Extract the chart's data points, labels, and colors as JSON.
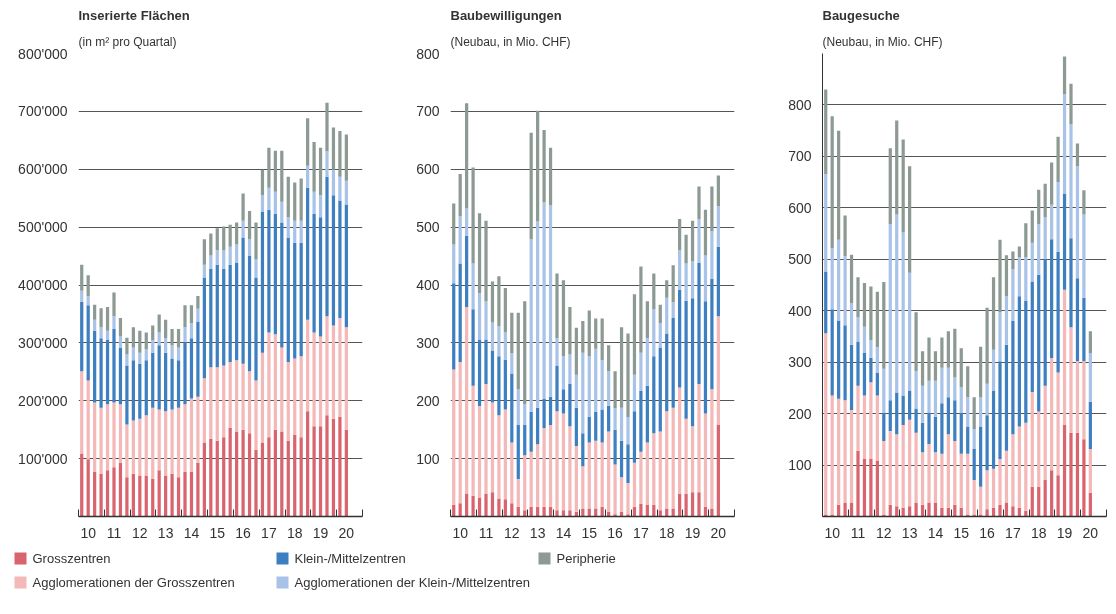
{
  "chart_data": [
    {
      "type": "bar",
      "stacked": true,
      "title": "Inserierte Flächen",
      "subtitle": "(in m² pro Quartal)",
      "grid": "y",
      "legend": "bottom",
      "categories": [
        null,
        "10",
        null,
        null,
        null,
        "11",
        null,
        null,
        null,
        "12",
        null,
        null,
        null,
        "13",
        null,
        null,
        null,
        "14",
        null,
        null,
        null,
        "15",
        null,
        null,
        null,
        "16",
        null,
        null,
        null,
        "17",
        null,
        null,
        null,
        "18",
        null,
        null,
        null,
        "19",
        null,
        null,
        null,
        "20"
      ],
      "ylim": [
        0,
        800000
      ],
      "yticks": [
        {
          "value": 0,
          "label": null
        },
        {
          "value": 100000,
          "label": "100'000"
        },
        {
          "value": 200000,
          "label": "200'000"
        },
        {
          "value": 300000,
          "label": "300'000"
        },
        {
          "value": 400000,
          "label": "400'000"
        },
        {
          "value": 500000,
          "label": "500'000"
        },
        {
          "value": 600000,
          "label": "600'000"
        },
        {
          "value": 700000,
          "label": "700'000"
        },
        {
          "value": 800000,
          "label": "800'000"
        }
      ],
      "series": [
        {
          "name": "Grosszentren",
          "color": "#d9646e",
          "values": [
            109000,
            99000,
            77000,
            74000,
            80000,
            85000,
            93000,
            68000,
            74000,
            71000,
            71000,
            65000,
            80000,
            71000,
            74000,
            68000,
            77000,
            77000,
            93000,
            128000,
            134000,
            131000,
            137000,
            153000,
            147000,
            150000,
            144000,
            115000,
            128000,
            137000,
            150000,
            147000,
            131000,
            141000,
            137000,
            182000,
            156000,
            156000,
            175000,
            169000,
            172000,
            150000
          ]
        },
        {
          "name": "Agglomerationen der Grosszentren",
          "color": "#f4b8b8",
          "values": [
            142000,
            136000,
            120000,
            114000,
            114000,
            112000,
            101000,
            91000,
            92000,
            98000,
            104000,
            123000,
            105000,
            111000,
            111000,
            120000,
            117000,
            127000,
            114000,
            111000,
            124000,
            127000,
            124000,
            114000,
            123000,
            114000,
            107000,
            120000,
            155000,
            181000,
            165000,
            145000,
            136000,
            132000,
            140000,
            158000,
            162000,
            155000,
            171000,
            161000,
            171000,
            177000
          ]
        },
        {
          "name": "Klein-/Mittelzentren",
          "color": "#3d7fc1",
          "values": [
            120000,
            130000,
            124000,
            120000,
            111000,
            127000,
            98000,
            102000,
            104000,
            95000,
            95000,
            95000,
            111000,
            101000,
            88000,
            82000,
            108000,
            104000,
            130000,
            174000,
            170000,
            177000,
            167000,
            168000,
            168000,
            218000,
            200000,
            178000,
            244000,
            212000,
            208000,
            216000,
            215000,
            200000,
            196000,
            228000,
            205000,
            206000,
            241000,
            225000,
            203000,
            212000
          ]
        },
        {
          "name": "Agglomerationen der Klein-/Mittelzentren",
          "color": "#a9c3e8",
          "values": [
            19000,
            16000,
            19000,
            19000,
            16000,
            22000,
            19000,
            19000,
            22000,
            19000,
            19000,
            22000,
            22000,
            25000,
            23000,
            22000,
            25000,
            26000,
            22000,
            22000,
            23000,
            25000,
            32000,
            31000,
            32000,
            29000,
            28000,
            31000,
            28000,
            38000,
            38000,
            36000,
            35000,
            38000,
            38000,
            38000,
            38000,
            38000,
            44000,
            44000,
            41000,
            41000
          ]
        },
        {
          "name": "Peripherie",
          "color": "#8c9a93",
          "values": [
            45000,
            36000,
            26000,
            33000,
            41000,
            41000,
            32000,
            29000,
            35000,
            38000,
            29000,
            25000,
            31000,
            32000,
            28000,
            32000,
            38000,
            31000,
            22000,
            44000,
            38000,
            38000,
            41000,
            38000,
            38000,
            47000,
            49000,
            64000,
            44000,
            69000,
            71000,
            88000,
            70000,
            66000,
            73000,
            82000,
            86000,
            82000,
            84000,
            73000,
            79000,
            80000
          ]
        }
      ]
    },
    {
      "type": "bar",
      "stacked": true,
      "title": "Baubewilligungen",
      "subtitle": "(Neubau, in Mio. CHF)",
      "grid": "y",
      "categories": [
        null,
        "10",
        null,
        null,
        null,
        "11",
        null,
        null,
        null,
        "12",
        null,
        null,
        null,
        "13",
        null,
        null,
        null,
        "14",
        null,
        null,
        null,
        "15",
        null,
        null,
        null,
        "16",
        null,
        null,
        null,
        "17",
        null,
        null,
        null,
        "18",
        null,
        null,
        null,
        "19",
        null,
        null,
        null,
        "20"
      ],
      "ylim": [
        0,
        800
      ],
      "yticks": [
        {
          "value": 0,
          "label": null
        },
        100,
        200,
        300,
        400,
        500,
        600,
        700,
        800
      ],
      "series": [
        {
          "color": "#d9646e",
          "values": [
            20,
            23,
            39,
            36,
            33,
            39,
            42,
            31,
            30,
            23,
            17,
            11,
            17,
            17,
            17,
            17,
            11,
            11,
            11,
            8,
            14,
            14,
            14,
            17,
            8,
            4,
            8,
            4,
            17,
            22,
            20,
            20,
            11,
            14,
            14,
            39,
            39,
            42,
            42,
            17,
            14,
            159
          ]
        },
        {
          "color": "#f4b8b8",
          "values": [
            234,
            244,
            323,
            190,
            158,
            190,
            155,
            144,
            155,
            105,
            48,
            95,
            95,
            108,
            136,
            141,
            171,
            167,
            145,
            114,
            73,
            114,
            117,
            111,
            139,
            86,
            60,
            54,
            76,
            90,
            108,
            124,
            136,
            168,
            174,
            184,
            130,
            114,
            187,
            161,
            206,
            187
          ]
        },
        {
          "color": "#3d7fc1",
          "values": [
            149,
            170,
            123,
            132,
            115,
            77,
            90,
            102,
            86,
            119,
            93,
            52,
            69,
            63,
            50,
            49,
            79,
            42,
            73,
            66,
            57,
            44,
            50,
            57,
            44,
            60,
            63,
            67,
            89,
            105,
            98,
            133,
            145,
            134,
            155,
            169,
            204,
            221,
            209,
            194,
            191,
            120
          ]
        },
        {
          "color": "#a9c3e8",
          "values": [
            67,
            82,
            47,
            79,
            80,
            66,
            48,
            52,
            48,
            35,
            62,
            36,
            298,
            322,
            340,
            331,
            47,
            57,
            51,
            57,
            139,
            105,
            109,
            85,
            60,
            37,
            57,
            47,
            63,
            66,
            82,
            81,
            42,
            62,
            27,
            68,
            64,
            64,
            76,
            79,
            82,
            70
          ]
        },
        {
          "color": "#8c9a93",
          "values": [
            71,
            73,
            182,
            166,
            138,
            139,
            71,
            86,
            76,
            70,
            132,
            178,
            184,
            191,
            125,
            99,
            112,
            131,
            82,
            81,
            55,
            79,
            52,
            72,
            45,
            64,
            139,
            144,
            139,
            149,
            64,
            62,
            32,
            30,
            64,
            54,
            50,
            70,
            56,
            79,
            77,
            53
          ]
        }
      ]
    },
    {
      "type": "bar",
      "stacked": true,
      "title": "Baugesuche",
      "subtitle": "(Neubau, in Mio. CHF)",
      "grid": "y",
      "categories": [
        null,
        "10",
        null,
        null,
        null,
        "11",
        null,
        null,
        null,
        "12",
        null,
        null,
        null,
        "13",
        null,
        null,
        null,
        "14",
        null,
        null,
        null,
        "15",
        null,
        null,
        null,
        "16",
        null,
        null,
        null,
        "17",
        null,
        null,
        null,
        "18",
        null,
        null,
        null,
        "19",
        null,
        null,
        null,
        "20"
      ],
      "ylim": [
        0,
        900
      ],
      "yticks": [
        {
          "value": 0,
          "label": null
        },
        100,
        200,
        300,
        400,
        500,
        600,
        700,
        800
      ],
      "series": [
        {
          "color": "#d9646e",
          "values": [
            4,
            4,
            23,
            27,
            27,
            128,
            112,
            112,
            109,
            4,
            23,
            20,
            17,
            20,
            27,
            23,
            27,
            27,
            17,
            17,
            23,
            17,
            4,
            4,
            4,
            14,
            17,
            23,
            27,
            20,
            17,
            11,
            58,
            58,
            71,
            90,
            80,
            178,
            163,
            163,
            150,
            46
          ]
        },
        {
          "color": "#f4b8b8",
          "values": [
            352,
            231,
            206,
            199,
            180,
            126,
            123,
            149,
            126,
            143,
            143,
            140,
            161,
            168,
            136,
            102,
            114,
            98,
            105,
            143,
            124,
            105,
            118,
            67,
            54,
            76,
            76,
            89,
            101,
            140,
            158,
            171,
            184,
            146,
            183,
            218,
            200,
            263,
            205,
            139,
            152,
            85
          ]
        },
        {
          "color": "#3d7fc1",
          "values": [
            120,
            168,
            152,
            146,
            127,
            86,
            83,
            47,
            44,
            54,
            60,
            81,
            57,
            57,
            47,
            57,
            60,
            69,
            98,
            72,
            79,
            79,
            53,
            60,
            117,
            107,
            152,
            190,
            206,
            220,
            253,
            237,
            215,
            266,
            247,
            231,
            234,
            187,
            173,
            161,
            123,
            92
          ]
        },
        {
          "color": "#a9c3e8",
          "values": [
            190,
            119,
            157,
            134,
            81,
            48,
            51,
            35,
            50,
            86,
            342,
            346,
            317,
            229,
            73,
            72,
            63,
            70,
            69,
            57,
            44,
            50,
            57,
            39,
            57,
            61,
            79,
            95,
            94,
            101,
            76,
            85,
            75,
            98,
            81,
            67,
            136,
            193,
            222,
            218,
            162,
            95
          ]
        },
        {
          "color": "#8c9a93",
          "values": [
            164,
            256,
            212,
            79,
            94,
            77,
            85,
            104,
            108,
            169,
            148,
            183,
            181,
            207,
            114,
            67,
            84,
            57,
            59,
            71,
            95,
            76,
            60,
            62,
            98,
            148,
            141,
            141,
            80,
            34,
            21,
            66,
            63,
            67,
            65,
            82,
            88,
            73,
            78,
            44,
            47,
            42
          ]
        }
      ]
    }
  ]
}
